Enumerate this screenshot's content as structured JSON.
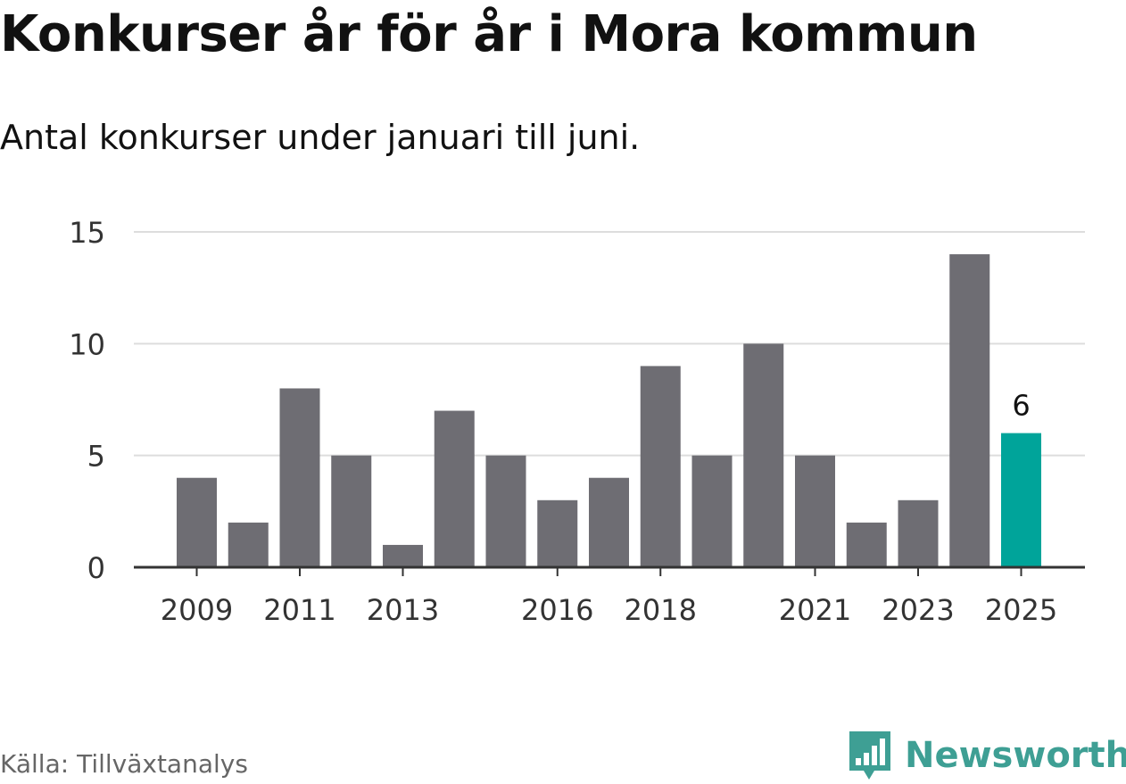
{
  "header": {
    "title": "Konkurser år för år i Mora kommun",
    "subtitle": "Antal konkurser under januari till juni."
  },
  "footer": {
    "source": "Källa: Tillväxtanalys",
    "brand": "Newsworthy"
  },
  "colors": {
    "bar": "#6e6d73",
    "highlight": "#00a49a",
    "grid": "#dddddd",
    "axis": "#333333",
    "brand": "#3e9f94"
  },
  "chart_data": {
    "type": "bar",
    "categories": [
      "2009",
      "2010",
      "2011",
      "2012",
      "2013",
      "2014",
      "2015",
      "2016",
      "2017",
      "2018",
      "2019",
      "2020",
      "2021",
      "2022",
      "2023",
      "2024",
      "2025"
    ],
    "values": [
      4,
      2,
      8,
      5,
      1,
      7,
      5,
      3,
      4,
      9,
      5,
      10,
      5,
      2,
      3,
      14,
      6
    ],
    "x_tick_labels": [
      "2009",
      "2011",
      "2013",
      "2016",
      "2018",
      "2021",
      "2023",
      "2025"
    ],
    "y_ticks": [
      0,
      5,
      10,
      15
    ],
    "ylim": [
      0,
      15
    ],
    "highlight_category": "2025",
    "highlight_label": "6",
    "grid": true
  }
}
